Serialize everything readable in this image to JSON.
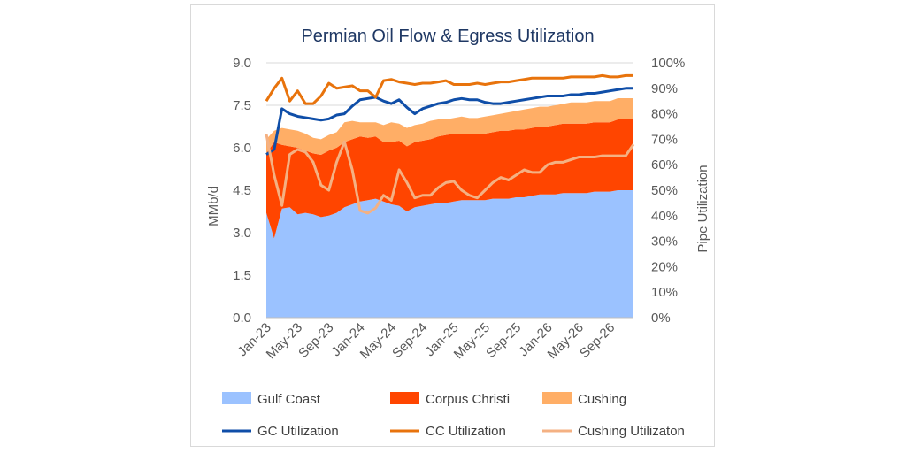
{
  "chart_data": {
    "type": "area",
    "title": "Permian Oil Flow & Egress Utilization",
    "ylabel_left": "MMb/d",
    "ylabel_right": "Pipe Utilization",
    "y_left_range": [
      0,
      9
    ],
    "y_left_ticks": [
      "0.0",
      "1.5",
      "3.0",
      "4.5",
      "6.0",
      "7.5",
      "9.0"
    ],
    "y_right_range": [
      0,
      100
    ],
    "y_right_ticks": [
      "0%",
      "10%",
      "20%",
      "30%",
      "40%",
      "50%",
      "60%",
      "70%",
      "80%",
      "90%",
      "100%"
    ],
    "x_tick_labels": [
      "Jan-23",
      "May-23",
      "Sep-23",
      "Jan-24",
      "May-24",
      "Sep-24",
      "Jan-25",
      "May-25",
      "Sep-25",
      "Jan-26",
      "May-26",
      "Sep-26"
    ],
    "grid": true,
    "legend_position": "bottom",
    "x": [
      "Jan-23",
      "Feb-23",
      "Mar-23",
      "Apr-23",
      "May-23",
      "Jun-23",
      "Jul-23",
      "Aug-23",
      "Sep-23",
      "Oct-23",
      "Nov-23",
      "Dec-23",
      "Jan-24",
      "Feb-24",
      "Mar-24",
      "Apr-24",
      "May-24",
      "Jun-24",
      "Jul-24",
      "Aug-24",
      "Sep-24",
      "Oct-24",
      "Nov-24",
      "Dec-24",
      "Jan-25",
      "Feb-25",
      "Mar-25",
      "Apr-25",
      "May-25",
      "Jun-25",
      "Jul-25",
      "Aug-25",
      "Sep-25",
      "Oct-25",
      "Nov-25",
      "Dec-25",
      "Jan-26",
      "Feb-26",
      "Mar-26",
      "Apr-26",
      "May-26",
      "Jun-26",
      "Jul-26",
      "Aug-26",
      "Sep-26",
      "Oct-26",
      "Nov-26",
      "Dec-26"
    ],
    "series_stacked": [
      {
        "name": "Gulf Coast",
        "color": "#9bc2ff",
        "values": [
          3.7,
          2.8,
          3.85,
          3.9,
          3.65,
          3.7,
          3.65,
          3.55,
          3.6,
          3.7,
          3.9,
          4.0,
          4.1,
          4.15,
          4.2,
          4.1,
          4.0,
          3.95,
          3.75,
          3.9,
          3.95,
          4.0,
          4.05,
          4.05,
          4.1,
          4.15,
          4.15,
          4.15,
          4.15,
          4.2,
          4.2,
          4.2,
          4.25,
          4.25,
          4.3,
          4.35,
          4.35,
          4.35,
          4.4,
          4.4,
          4.4,
          4.4,
          4.45,
          4.45,
          4.45,
          4.5,
          4.5,
          4.5
        ]
      },
      {
        "name": "Corpus Christi",
        "color": "#ff4500",
        "values": [
          2.1,
          3.4,
          2.25,
          2.15,
          2.35,
          2.2,
          2.15,
          2.2,
          2.3,
          2.3,
          2.3,
          2.3,
          2.3,
          2.2,
          2.2,
          2.1,
          2.2,
          2.3,
          2.3,
          2.3,
          2.3,
          2.3,
          2.35,
          2.4,
          2.4,
          2.35,
          2.35,
          2.35,
          2.35,
          2.35,
          2.4,
          2.4,
          2.4,
          2.4,
          2.4,
          2.4,
          2.4,
          2.45,
          2.45,
          2.45,
          2.45,
          2.45,
          2.45,
          2.45,
          2.45,
          2.5,
          2.5,
          2.5
        ]
      },
      {
        "name": "Cushing",
        "color": "#ffae66",
        "values": [
          0.5,
          0.4,
          0.6,
          0.6,
          0.6,
          0.6,
          0.55,
          0.55,
          0.55,
          0.55,
          0.7,
          0.65,
          0.5,
          0.55,
          0.5,
          0.6,
          0.7,
          0.6,
          0.65,
          0.6,
          0.6,
          0.65,
          0.6,
          0.55,
          0.55,
          0.6,
          0.55,
          0.55,
          0.6,
          0.6,
          0.6,
          0.65,
          0.65,
          0.7,
          0.7,
          0.7,
          0.7,
          0.7,
          0.7,
          0.75,
          0.75,
          0.75,
          0.75,
          0.75,
          0.75,
          0.75,
          0.75,
          0.75
        ]
      }
    ],
    "series_lines": [
      {
        "name": "GC Utilization",
        "color": "#0f4ea8",
        "width": 3,
        "values": [
          64,
          66,
          82,
          80,
          79,
          78.5,
          78,
          77.5,
          78,
          79.5,
          80,
          83,
          85.5,
          86,
          86.5,
          85,
          84,
          85.5,
          82.5,
          80,
          82,
          83,
          84,
          84.5,
          85.5,
          86,
          85.5,
          85.5,
          84.5,
          84,
          84,
          84.5,
          85,
          85.5,
          86,
          86.5,
          87,
          87,
          87,
          87.5,
          87.5,
          88,
          88,
          88.5,
          89,
          89.5,
          90,
          90
        ]
      },
      {
        "name": "CC Utilization",
        "color": "#e8730c",
        "width": 3,
        "values": [
          85,
          90,
          94,
          85,
          89,
          84,
          84,
          87,
          92,
          90,
          90.5,
          91,
          89,
          89,
          86.5,
          93,
          93.5,
          92.5,
          92,
          91.5,
          92,
          92,
          92.5,
          93,
          91.5,
          91.5,
          91.5,
          92,
          91.5,
          92,
          92.5,
          92.5,
          93,
          93.5,
          94,
          94,
          94,
          94,
          94,
          94.5,
          94.5,
          94.5,
          94.5,
          95,
          94.5,
          94.5,
          95,
          95
        ]
      },
      {
        "name": "Cushing Utilizaton",
        "color": "#f4b183",
        "width": 3,
        "values": [
          72,
          56,
          44,
          64,
          66,
          65,
          61,
          52,
          50,
          61,
          69,
          58,
          42,
          41,
          43,
          48,
          46,
          58,
          53,
          47,
          48,
          48,
          51,
          53,
          53.5,
          50,
          48,
          47,
          50,
          53,
          55,
          54,
          56,
          58,
          57,
          57,
          60,
          61,
          61,
          62,
          63,
          63,
          63,
          63.5,
          63.5,
          63.5,
          63.5,
          68
        ]
      }
    ]
  }
}
